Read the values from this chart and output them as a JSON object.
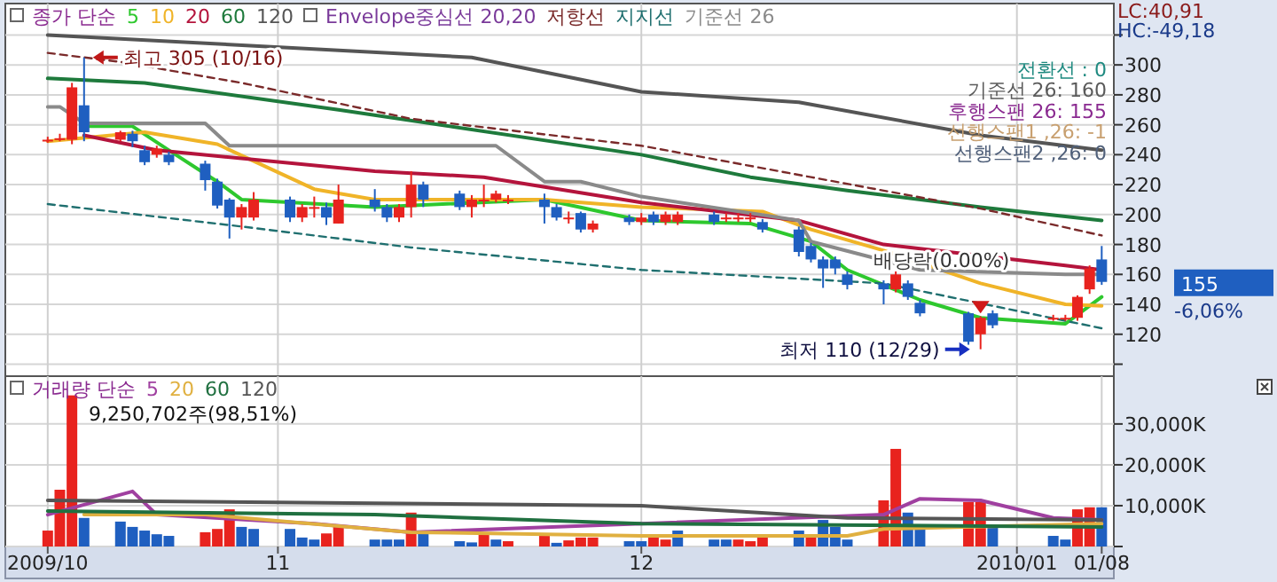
{
  "chart_data": [
    {
      "type": "candlestick",
      "legend_title": "종가 단순",
      "legend": "top left",
      "grid": true,
      "tick_labels": "y",
      "x": [
        "2009-10-13",
        "2009-10-14",
        "2009-10-15",
        "2009-10-16",
        "2009-10-19",
        "2009-10-20",
        "2009-10-21",
        "2009-10-22",
        "2009-10-23",
        "2009-10-26",
        "2009-10-27",
        "2009-10-28",
        "2009-10-29",
        "2009-10-30",
        "2009-11-02",
        "2009-11-03",
        "2009-11-04",
        "2009-11-05",
        "2009-11-06",
        "2009-11-09",
        "2009-11-10",
        "2009-11-11",
        "2009-11-12",
        "2009-11-13",
        "2009-11-16",
        "2009-11-17",
        "2009-11-18",
        "2009-11-19",
        "2009-11-20",
        "2009-11-23",
        "2009-11-24",
        "2009-11-25",
        "2009-11-26",
        "2009-11-27",
        "2009-11-30",
        "2009-12-01",
        "2009-12-02",
        "2009-12-03",
        "2009-12-04",
        "2009-12-07",
        "2009-12-08",
        "2009-12-09",
        "2009-12-10",
        "2009-12-11",
        "2009-12-14",
        "2009-12-15",
        "2009-12-16",
        "2009-12-17",
        "2009-12-18",
        "2009-12-21",
        "2009-12-22",
        "2009-12-23",
        "2009-12-24",
        "2009-12-28",
        "2009-12-29",
        "2009-12-30",
        "2010-01-04",
        "2010-01-05",
        "2010-01-06",
        "2010-01-07",
        "2010-01-08"
      ],
      "ohlc": [
        [
          250,
          252,
          248,
          250
        ],
        [
          251,
          254,
          249,
          251
        ],
        [
          250,
          288,
          247,
          285
        ],
        [
          273,
          305,
          249,
          255
        ],
        [
          250,
          256,
          249,
          255
        ],
        [
          254,
          256,
          245,
          249
        ],
        [
          243,
          246,
          233,
          235
        ],
        [
          240,
          246,
          238,
          244
        ],
        [
          240,
          242,
          233,
          235
        ],
        [
          234,
          236,
          216,
          223
        ],
        [
          222,
          224,
          204,
          206
        ],
        [
          210,
          211,
          184,
          198
        ],
        [
          198,
          207,
          190,
          205
        ],
        [
          198,
          215,
          196,
          210
        ],
        [
          210,
          212,
          195,
          198
        ],
        [
          198,
          207,
          195,
          205
        ],
        [
          205,
          212,
          198,
          205
        ],
        [
          205,
          208,
          193,
          198
        ],
        [
          194,
          220,
          194,
          210
        ],
        [
          210,
          217,
          202,
          205
        ],
        [
          205,
          207,
          195,
          198
        ],
        [
          198,
          207,
          195,
          205
        ],
        [
          205,
          229,
          198,
          220
        ],
        [
          220,
          222,
          205,
          210
        ],
        [
          214,
          216,
          203,
          205
        ],
        [
          205,
          213,
          198,
          210
        ],
        [
          210,
          220,
          205,
          210
        ],
        [
          210,
          216,
          208,
          214
        ],
        [
          210,
          213,
          207,
          210
        ],
        [
          210,
          214,
          194,
          205
        ],
        [
          205,
          207,
          196,
          198
        ],
        [
          198,
          202,
          194,
          198
        ],
        [
          201,
          202,
          188,
          190
        ],
        [
          190,
          196,
          188,
          194
        ],
        [
          198,
          200,
          193,
          195
        ],
        [
          195,
          201,
          193,
          198
        ],
        [
          200,
          202,
          193,
          195
        ],
        [
          195,
          202,
          193,
          200
        ],
        [
          195,
          202,
          193,
          200
        ],
        [
          200,
          202,
          193,
          195
        ],
        [
          198,
          201,
          195,
          198
        ],
        [
          198,
          201,
          195,
          198
        ],
        [
          198,
          201,
          195,
          198
        ],
        [
          195,
          197,
          188,
          190
        ],
        [
          190,
          192,
          172,
          175
        ],
        [
          179,
          181,
          168,
          170
        ],
        [
          170,
          172,
          151,
          164
        ],
        [
          170,
          172,
          160,
          164
        ],
        [
          160,
          162,
          150,
          153
        ],
        [
          154,
          156,
          140,
          150
        ],
        [
          150,
          162,
          148,
          160
        ],
        [
          154,
          156,
          143,
          145
        ],
        [
          141,
          143,
          132,
          134
        ],
        [
          134,
          135,
          113,
          115
        ],
        [
          120,
          132,
          110,
          131
        ],
        [
          134,
          136,
          124,
          126
        ],
        [
          131,
          133,
          129,
          131
        ],
        [
          131,
          133,
          129,
          131
        ],
        [
          131,
          146,
          129,
          145
        ],
        [
          150,
          166,
          147,
          164
        ],
        [
          170,
          179,
          153,
          155
        ]
      ],
      "series": [
        {
          "name": "5",
          "type": "line",
          "color": "#2ec82e",
          "x": [
            "2009-10-16",
            "2009-10-20",
            "2009-10-23",
            "2009-10-27",
            "2009-10-29",
            "2009-11-09",
            "2009-11-23",
            "2009-12-01",
            "2009-12-10",
            "2009-12-15",
            "2009-12-18",
            "2009-12-24",
            "2009-12-29",
            "2010-01-05",
            "2010-01-08"
          ],
          "values": [
            259,
            259,
            243,
            222,
            210,
            205,
            210,
            196,
            194,
            182,
            163,
            143,
            131,
            127,
            145
          ]
        },
        {
          "name": "10",
          "type": "line",
          "color": "#f0b428",
          "x": [
            "2009-10-13",
            "2009-10-21",
            "2009-10-27",
            "2009-11-04",
            "2009-11-09",
            "2009-11-23",
            "2009-12-01",
            "2009-12-11",
            "2009-12-15",
            "2009-12-21",
            "2009-12-29",
            "2010-01-05",
            "2010-01-08"
          ],
          "values": [
            249,
            255,
            247,
            217,
            210,
            210,
            205,
            202,
            190,
            176,
            154,
            140,
            139
          ]
        },
        {
          "name": "20",
          "type": "line",
          "color": "#b4143c",
          "x": [
            "2009-10-16",
            "2009-10-22",
            "2009-11-09",
            "2009-11-18",
            "2009-12-01",
            "2009-12-14",
            "2009-12-21",
            "2010-01-05",
            "2010-01-08"
          ],
          "values": [
            253,
            243,
            229,
            225,
            208,
            196,
            180,
            166,
            163
          ]
        },
        {
          "name": "60",
          "type": "line",
          "color": "#1e7a3c",
          "x": [
            "2009-10-13",
            "2009-10-21",
            "2009-11-06",
            "2009-12-01",
            "2009-12-10",
            "2009-12-18",
            "2009-12-29",
            "2010-01-08"
          ],
          "values": [
            291,
            288,
            270,
            240,
            225,
            216,
            205,
            196
          ]
        },
        {
          "name": "120",
          "type": "line",
          "color": "#555555",
          "x": [
            "2009-10-13",
            "2009-11-17",
            "2009-12-01",
            "2009-12-14",
            "2009-12-29",
            "2010-01-08"
          ],
          "values": [
            320,
            305,
            282,
            275,
            253,
            243
          ]
        },
        {
          "name": "저항선",
          "type": "line",
          "line_style": "dashed",
          "color": "#7a2a2a",
          "x": [
            "2009-10-13",
            "2009-10-19",
            "2009-10-29",
            "2009-11-12",
            "2009-12-01",
            "2009-12-15",
            "2009-12-29",
            "2010-01-08"
          ],
          "values": [
            308,
            302,
            288,
            264,
            246,
            225,
            204,
            186
          ]
        },
        {
          "name": "지지선",
          "type": "line",
          "line_style": "dashed",
          "color": "#1f6f6f",
          "x": [
            "2009-10-13",
            "2009-10-29",
            "2009-11-12",
            "2009-12-01",
            "2009-12-21",
            "2010-01-08"
          ],
          "values": [
            207,
            192,
            178,
            163,
            154,
            124
          ]
        },
        {
          "name": "기준선 26",
          "type": "line",
          "color": "#8a8a8a",
          "x": [
            "2009-10-13",
            "2009-10-14",
            "2009-10-16",
            "2009-10-26",
            "2009-10-28",
            "2009-11-19",
            "2009-11-23",
            "2009-11-26",
            "2009-12-01",
            "2009-12-14",
            "2009-12-15",
            "2009-12-24",
            "2010-01-05",
            "2010-01-08"
          ],
          "values": [
            272,
            272,
            261,
            261,
            246,
            246,
            222,
            222,
            212,
            196,
            182,
            163,
            160,
            160
          ]
        }
      ],
      "xlim": [
        "2009-10-09T12:00",
        "2010-01-09"
      ],
      "xticks": [
        {
          "value": "2009-10-13",
          "label": null
        },
        {
          "value": "2009-11-01",
          "label": null
        },
        {
          "value": "2009-12-01",
          "label": null
        },
        {
          "value": "2010-01-01",
          "label": null
        }
      ],
      "ylim": [
        92,
        341
      ],
      "yticks": [
        {
          "value": 100,
          "label": null
        },
        120,
        140,
        160,
        180,
        200,
        220,
        240,
        260,
        280,
        300,
        {
          "value": 320,
          "label": null
        }
      ],
      "annotations": [
        {
          "text": "최고 305 (10/16)",
          "x": "2009-10-16",
          "y": 305
        },
        "최저 110 (12/29)",
        {
          "text": "배당락(0.00%)",
          "x": "2009-12-29",
          "y": 134
        },
        "Envelope중심선 20,20",
        "전환선 : 0",
        "기준선 26: 160",
        "후행스팬 26: 155",
        "선행스팬1 ,26: -1",
        "선행스팬2 ,26: 0",
        "LC:40,91",
        "HC:-49,18",
        "155",
        "-6,06%"
      ]
    },
    {
      "type": "bar",
      "legend_title": "거래량 단순",
      "legend": "top left",
      "grid": true,
      "x": [
        "2009-10-13",
        "2009-10-14",
        "2009-10-15",
        "2009-10-16",
        "2009-10-19",
        "2009-10-20",
        "2009-10-21",
        "2009-10-22",
        "2009-10-23",
        "2009-10-26",
        "2009-10-27",
        "2009-10-28",
        "2009-10-29",
        "2009-10-30",
        "2009-11-02",
        "2009-11-03",
        "2009-11-04",
        "2009-11-05",
        "2009-11-06",
        "2009-11-09",
        "2009-11-10",
        "2009-11-11",
        "2009-11-12",
        "2009-11-13",
        "2009-11-16",
        "2009-11-17",
        "2009-11-18",
        "2009-11-19",
        "2009-11-20",
        "2009-11-23",
        "2009-11-24",
        "2009-11-25",
        "2009-11-26",
        "2009-11-27",
        "2009-11-30",
        "2009-12-01",
        "2009-12-02",
        "2009-12-03",
        "2009-12-04",
        "2009-12-07",
        "2009-12-08",
        "2009-12-09",
        "2009-12-10",
        "2009-12-11",
        "2009-12-14",
        "2009-12-15",
        "2009-12-16",
        "2009-12-17",
        "2009-12-18",
        "2009-12-21",
        "2009-12-22",
        "2009-12-23",
        "2009-12-24",
        "2009-12-28",
        "2009-12-29",
        "2009-12-30",
        "2010-01-04",
        "2010-01-05",
        "2010-01-06",
        "2010-01-07",
        "2010-01-08"
      ],
      "values": [
        3900,
        13900,
        37000,
        7000,
        6100,
        4800,
        3900,
        3000,
        2600,
        3500,
        4300,
        9100,
        4800,
        4300,
        4300,
        2200,
        1700,
        3200,
        5200,
        1700,
        1700,
        1700,
        8300,
        3900,
        1300,
        1000,
        3200,
        1700,
        1300,
        2600,
        900,
        1500,
        2200,
        2200,
        1300,
        1300,
        2200,
        1700,
        3900,
        1700,
        1700,
        1700,
        1300,
        2200,
        3900,
        2600,
        6500,
        4800,
        1700,
        11300,
        23900,
        8300,
        4800,
        10900,
        10900,
        4800,
        2600,
        1700,
        9100,
        9600,
        9600
      ],
      "colors": [
        "#e8231e",
        "#e8231e",
        "#e8231e",
        "#1f5fc0",
        "#1f5fc0",
        "#1f5fc0",
        "#1f5fc0",
        "#1f5fc0",
        "#1f5fc0",
        "#e8231e",
        "#e8231e",
        "#e8231e",
        "#1f5fc0",
        "#1f5fc0",
        "#1f5fc0",
        "#1f5fc0",
        "#1f5fc0",
        "#e8231e",
        "#e8231e",
        "#1f5fc0",
        "#1f5fc0",
        "#1f5fc0",
        "#e8231e",
        "#1f5fc0",
        "#1f5fc0",
        "#1f5fc0",
        "#e8231e",
        "#1f5fc0",
        "#e8231e",
        "#e8231e",
        "#1f5fc0",
        "#e8231e",
        "#e8231e",
        "#e8231e",
        "#1f5fc0",
        "#1f5fc0",
        "#e8231e",
        "#e8231e",
        "#1f5fc0",
        "#1f5fc0",
        "#1f5fc0",
        "#e8231e",
        "#e8231e",
        "#e8231e",
        "#1f5fc0",
        "#e8231e",
        "#1f5fc0",
        "#1f5fc0",
        "#1f5fc0",
        "#e8231e",
        "#e8231e",
        "#1f5fc0",
        "#1f5fc0",
        "#e8231e",
        "#e8231e",
        "#1f5fc0",
        "#1f5fc0",
        "#1f5fc0",
        "#e8231e",
        "#e8231e",
        "#1f5fc0"
      ],
      "series": [
        {
          "name": "5",
          "type": "line",
          "color": "#a040a0",
          "x": [
            "2009-10-13",
            "2009-10-20",
            "2009-10-22",
            "2009-11-04",
            "2009-11-12",
            "2009-12-21",
            "2009-12-24",
            "2009-12-29",
            "2010-01-04",
            "2010-01-08"
          ],
          "values": [
            7800,
            13500,
            7800,
            5600,
            3500,
            7800,
            11700,
            11300,
            7000,
            6500
          ]
        },
        {
          "name": "20",
          "type": "line",
          "color": "#e0b040",
          "x": [
            "2009-10-16",
            "2009-10-26",
            "2009-11-12",
            "2009-12-01",
            "2009-12-18",
            "2009-12-21",
            "2010-01-08"
          ],
          "values": [
            7800,
            7800,
            3500,
            2600,
            2600,
            4300,
            5600
          ]
        },
        {
          "name": "60",
          "type": "line",
          "color": "#207040",
          "x": [
            "2009-10-13",
            "2009-11-09",
            "2009-12-01",
            "2010-01-08"
          ],
          "values": [
            8700,
            7800,
            5600,
            4800
          ]
        },
        {
          "name": "120",
          "type": "line",
          "color": "#555555",
          "x": [
            "2009-10-13",
            "2009-12-01",
            "2009-12-18",
            "2010-01-08"
          ],
          "values": [
            11300,
            10000,
            7000,
            6500
          ]
        }
      ],
      "xlim": [
        "2009-10-09T12:00",
        "2010-01-09"
      ],
      "xticks": [
        {
          "value": "2009-10-13",
          "label": "2009/10"
        },
        {
          "value": "2009-11-01",
          "label": "11"
        },
        {
          "value": "2009-12-01",
          "label": "12"
        },
        {
          "value": "2010-01-01",
          "label": "2010/01"
        },
        {
          "value": "2010-01-08",
          "label": "01/08"
        }
      ],
      "ylim": [
        0,
        41700
      ],
      "yticks": [
        {
          "value": 0,
          "label": null
        },
        {
          "value": 10000,
          "label": "10,000K"
        },
        {
          "value": 20000,
          "label": "20,000K"
        },
        {
          "value": 30000,
          "label": "30,000K"
        }
      ],
      "annotations": [
        "9,250,702주(98,51%)"
      ]
    }
  ]
}
